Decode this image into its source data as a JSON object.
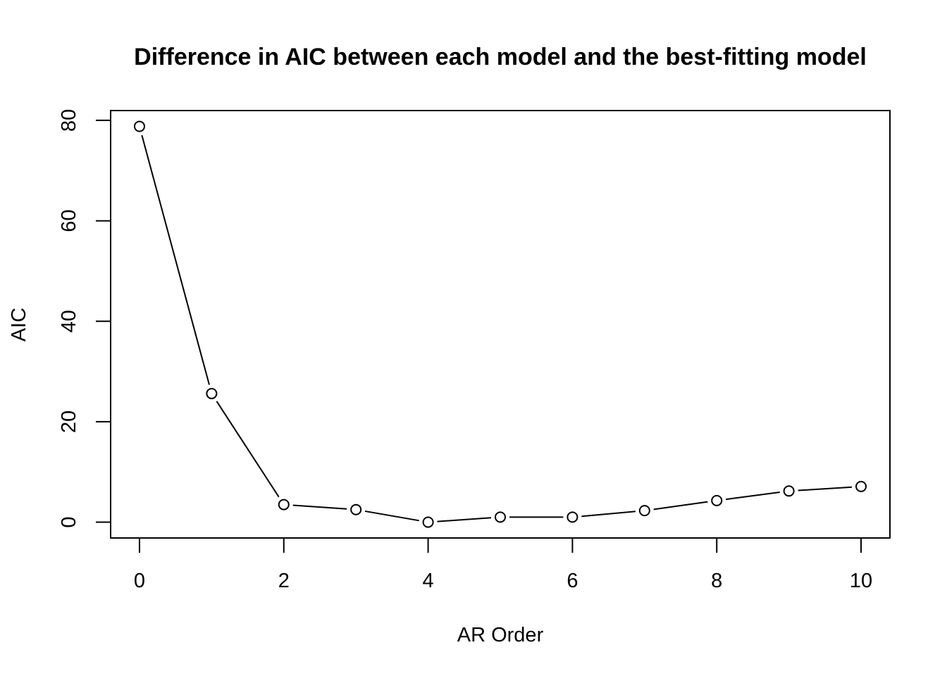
{
  "chart_data": {
    "type": "line",
    "title": "Difference in AIC between each model and the best-fitting model",
    "xlabel": "AR Order",
    "ylabel": "AIC",
    "x": [
      0,
      1,
      2,
      3,
      4,
      5,
      6,
      7,
      8,
      9,
      10
    ],
    "series": [
      {
        "values": [
          78.8,
          25.6,
          3.5,
          2.5,
          0.0,
          1.0,
          1.0,
          2.3,
          4.3,
          6.2,
          7.1
        ]
      }
    ],
    "xticks": [
      0,
      2,
      4,
      6,
      8,
      10
    ],
    "yticks": [
      0,
      20,
      40,
      60,
      80
    ],
    "xlim": [
      -0.4,
      10.4
    ],
    "ylim": [
      -3.15,
      81.95
    ],
    "marker": "open-circle",
    "grid": false,
    "legend": "none"
  }
}
